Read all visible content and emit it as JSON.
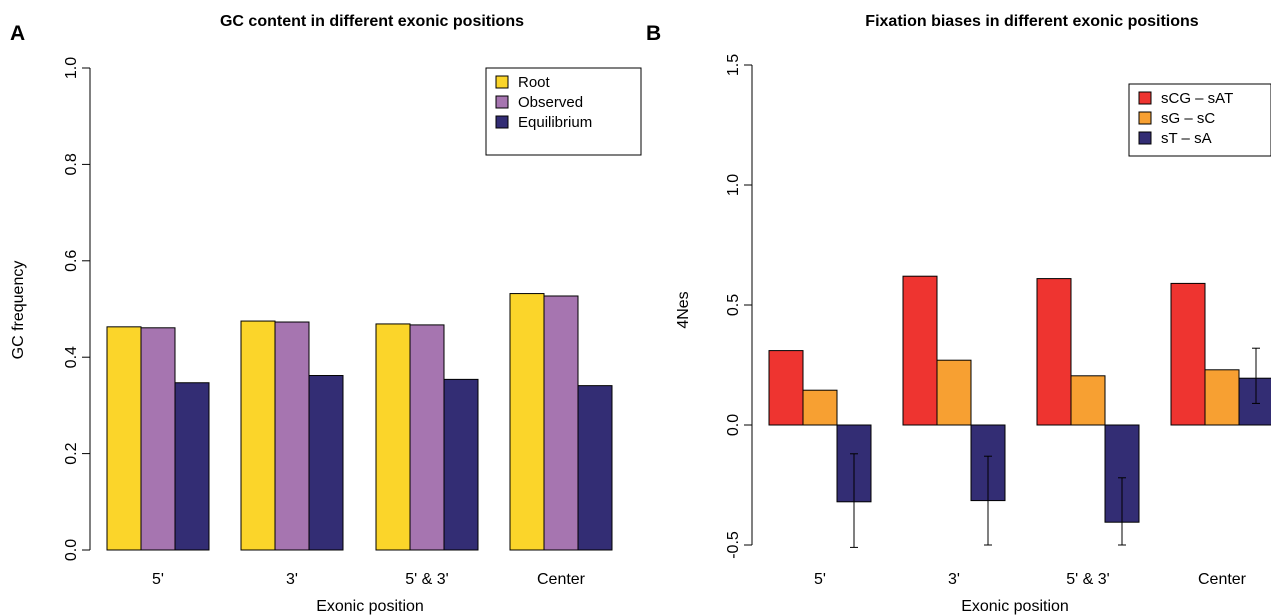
{
  "chart_data": [
    {
      "panel": "A",
      "type": "bar",
      "title": "GC content in different exonic positions",
      "xlabel": "Exonic position",
      "ylabel": "GC frequency",
      "ylim": [
        0,
        1
      ],
      "yticks": [
        "0.0",
        "0.2",
        "0.4",
        "0.6",
        "0.8",
        "1.0"
      ],
      "categories": [
        "5'",
        "3'",
        "5' & 3'",
        "Center"
      ],
      "series": [
        {
          "name": "Root",
          "color": "#FBD52A",
          "values": [
            0.463,
            0.475,
            0.469,
            0.532
          ]
        },
        {
          "name": "Observed",
          "color": "#A675B0",
          "values": [
            0.461,
            0.473,
            0.467,
            0.527
          ]
        },
        {
          "name": "Equilibrium",
          "color": "#332D74",
          "values": [
            0.347,
            0.362,
            0.354,
            0.341
          ]
        }
      ],
      "legend": "top-right",
      "grid": false
    },
    {
      "panel": "B",
      "type": "bar",
      "title": "Fixation biases in different exonic positions",
      "xlabel": "Exonic position",
      "ylabel": "4Nes",
      "ylim": [
        -0.5,
        1.5
      ],
      "yticks": [
        "-0.5",
        "0.0",
        "0.5",
        "1.0",
        "1.5"
      ],
      "categories": [
        "5'",
        "3'",
        "5' & 3'",
        "Center"
      ],
      "series": [
        {
          "name": "sCG – sAT",
          "color": "#EE3430",
          "values": [
            0.31,
            0.62,
            0.61,
            0.59
          ]
        },
        {
          "name": "sG – sC",
          "color": "#F7A032",
          "values": [
            0.145,
            0.27,
            0.205,
            0.23
          ]
        },
        {
          "name": "sT – sA",
          "color": "#332D74",
          "values": [
            -0.32,
            -0.315,
            -0.405,
            0.195
          ],
          "error": [
            [
              -0.51,
              -0.12
            ],
            [
              -0.5,
              -0.13
            ],
            [
              -0.5,
              -0.22
            ],
            [
              0.09,
              0.32
            ]
          ]
        }
      ],
      "legend": "top-right",
      "grid": false
    }
  ]
}
